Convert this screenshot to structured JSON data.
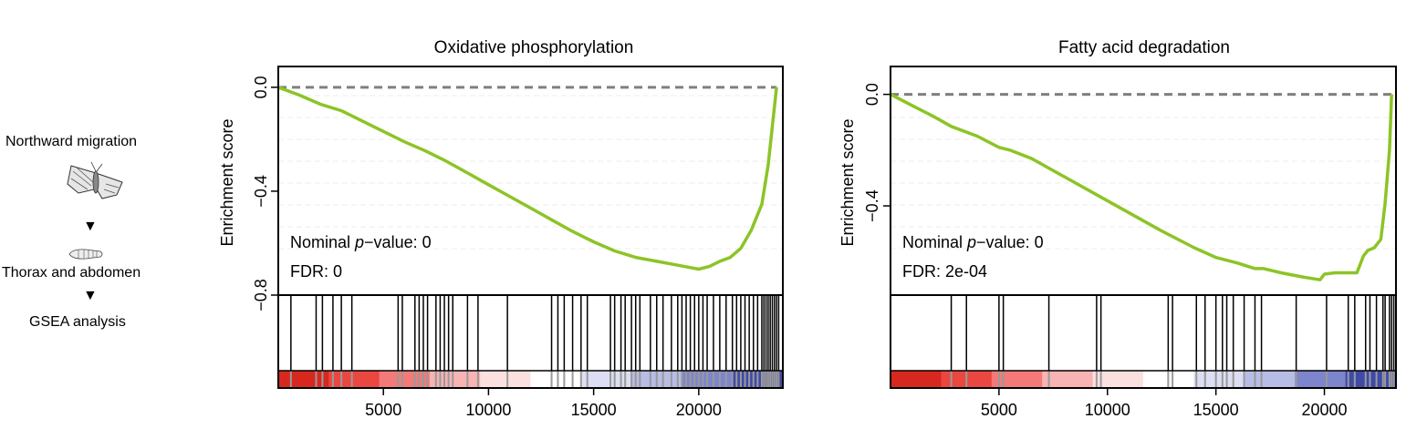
{
  "workflow": {
    "step1": "Northward migration",
    "step2": "Thorax and abdomen",
    "step3": "GSEA analysis",
    "arrow": "▼",
    "moth_icon": "moth-icon",
    "thorax_icon": "thorax-abdomen-icon"
  },
  "colors": {
    "curve": "#8cc426",
    "zero_line": "#7f7f7f",
    "hit_line": "#000000",
    "heat": [
      "#d7281f",
      "#e9473f",
      "#f37a78",
      "#f8b3b3",
      "#fbe0e0",
      "#ffffff",
      "#dcdff3",
      "#b8bde6",
      "#7d85cd",
      "#3f4aa8"
    ]
  },
  "chart_data": [
    {
      "type": "line",
      "title": "Oxidative phosphorylation",
      "ylabel": "Enrichment score",
      "xlabel": "",
      "xlim": [
        0,
        24000
      ],
      "ylim": [
        -0.8,
        0.08
      ],
      "x_ticks": [
        5000,
        10000,
        15000,
        20000
      ],
      "y_ticks": [
        0.0,
        -0.4,
        -0.8
      ],
      "y_tick_labels": [
        "0.0",
        "−0.4",
        "−0.8"
      ],
      "grid": "dashed horizontal",
      "annotation": {
        "pvalue_prefix": "Nominal ",
        "pvalue_italic": "p",
        "pvalue_suffix": "−value: 0",
        "fdr": "FDR: 0"
      },
      "series": [
        {
          "x": [
            0,
            1000,
            2000,
            3000,
            4000,
            5000,
            6000,
            7000,
            8000,
            9000,
            10000,
            11000,
            12000,
            13000,
            14000,
            15000,
            16000,
            17000,
            18000,
            19000,
            20000,
            20500,
            21000,
            21500,
            22000,
            22500,
            23000,
            23300,
            23500,
            23700
          ],
          "y": [
            0.0,
            -0.03,
            -0.065,
            -0.09,
            -0.13,
            -0.17,
            -0.21,
            -0.245,
            -0.285,
            -0.33,
            -0.375,
            -0.42,
            -0.465,
            -0.51,
            -0.555,
            -0.595,
            -0.63,
            -0.655,
            -0.67,
            -0.685,
            -0.7,
            -0.69,
            -0.67,
            -0.655,
            -0.62,
            -0.55,
            -0.45,
            -0.3,
            -0.15,
            0.0
          ]
        }
      ],
      "hits_x": [
        600,
        1800,
        2100,
        2600,
        3000,
        3500,
        5700,
        5900,
        6500,
        6700,
        6900,
        7100,
        7500,
        7700,
        7900,
        8100,
        8300,
        9000,
        9500,
        10900,
        13000,
        13300,
        13600,
        14000,
        14400,
        14700,
        15800,
        16000,
        16300,
        16500,
        16800,
        17000,
        17200,
        17700,
        18000,
        18300,
        18700,
        19000,
        19200,
        19400,
        19600,
        19800,
        20000,
        20200,
        20400,
        20700,
        21000,
        21300,
        21600,
        21800,
        22000,
        22200,
        22400,
        22600,
        22800,
        23000,
        23100,
        23200,
        23300,
        23400,
        23500,
        23600,
        23700,
        23800
      ]
    },
    {
      "type": "line",
      "title": "Fatty acid degradation",
      "ylabel": "Enrichment score",
      "xlabel": "",
      "xlim": [
        0,
        23300
      ],
      "ylim": [
        -0.72,
        0.1
      ],
      "x_ticks": [
        5000,
        10000,
        15000,
        20000
      ],
      "y_ticks": [
        0.0,
        -0.4
      ],
      "y_tick_labels": [
        "0.0",
        "−0.4"
      ],
      "grid": "dashed horizontal",
      "annotation": {
        "pvalue_prefix": "Nominal ",
        "pvalue_italic": "p",
        "pvalue_suffix": "−value: 0",
        "fdr": "FDR: 2e-04"
      },
      "series": [
        {
          "x": [
            0,
            1000,
            2000,
            2800,
            4000,
            5000,
            5500,
            6500,
            8000,
            9500,
            11000,
            12500,
            14000,
            15000,
            16000,
            16800,
            17200,
            18000,
            19000,
            19800,
            20000,
            20500,
            21000,
            21500,
            21800,
            22000,
            22300,
            22600,
            22800,
            23000,
            23100
          ],
          "y": [
            0.0,
            -0.04,
            -0.08,
            -0.115,
            -0.15,
            -0.19,
            -0.2,
            -0.23,
            -0.295,
            -0.36,
            -0.425,
            -0.49,
            -0.55,
            -0.585,
            -0.605,
            -0.625,
            -0.625,
            -0.64,
            -0.655,
            -0.665,
            -0.645,
            -0.64,
            -0.64,
            -0.64,
            -0.58,
            -0.56,
            -0.55,
            -0.52,
            -0.39,
            -0.2,
            0.0
          ]
        }
      ],
      "hits_x": [
        2800,
        3500,
        5000,
        5200,
        7300,
        9500,
        9700,
        12800,
        13000,
        14100,
        14500,
        15000,
        15300,
        15500,
        15800,
        16300,
        16800,
        17100,
        18700,
        20100,
        21100,
        21400,
        21900,
        22100,
        22400,
        22700,
        22800,
        23000,
        23100,
        23200
      ]
    }
  ]
}
